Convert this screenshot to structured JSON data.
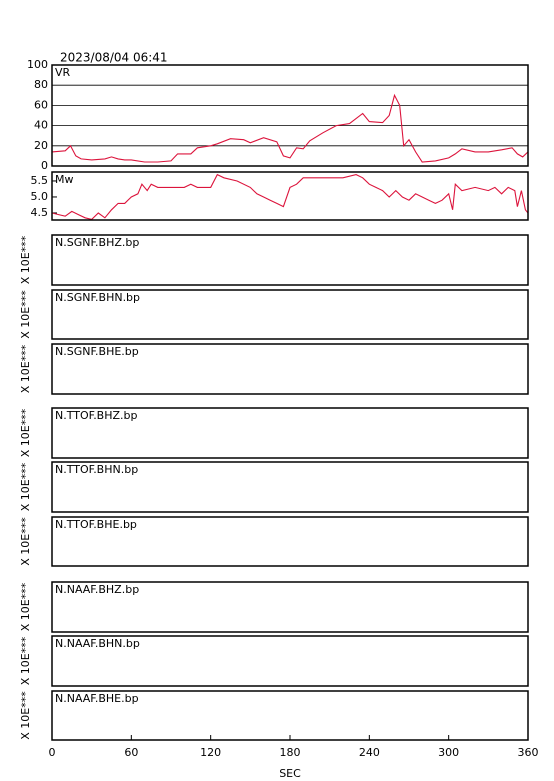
{
  "title": "2023/08/04 06:41",
  "chart_data": [
    {
      "type": "line",
      "label": "VR",
      "color": "#dc143c",
      "x": [
        0,
        10,
        14,
        18,
        22,
        30,
        40,
        45,
        50,
        55,
        60,
        70,
        80,
        90,
        95,
        105,
        110,
        120,
        125,
        135,
        145,
        150,
        160,
        170,
        175,
        180,
        185,
        190,
        195,
        205,
        215,
        225,
        235,
        240,
        250,
        255,
        259,
        263,
        266,
        270,
        275,
        280,
        290,
        300,
        305,
        310,
        320,
        330,
        340,
        348,
        352,
        356,
        360
      ],
      "values": [
        14,
        15,
        20,
        10,
        7,
        6,
        7,
        9,
        7,
        6,
        6,
        4,
        4,
        5,
        12,
        12,
        18,
        20,
        22,
        27,
        26,
        23,
        28,
        24,
        10,
        8,
        18,
        17,
        25,
        33,
        40,
        42,
        52,
        44,
        43,
        50,
        70,
        60,
        20,
        26,
        14,
        4,
        5,
        8,
        12,
        17,
        14,
        14,
        16,
        18,
        12,
        9,
        14
      ],
      "xlim": [
        0,
        360
      ],
      "ylim": [
        0,
        100
      ],
      "yticks": [
        0,
        20,
        40,
        60,
        80,
        100
      ],
      "grid": true
    },
    {
      "type": "line",
      "label": "Mw",
      "color": "#dc143c",
      "x": [
        0,
        5,
        10,
        15,
        20,
        25,
        30,
        35,
        40,
        45,
        50,
        55,
        60,
        65,
        68,
        72,
        75,
        80,
        90,
        100,
        105,
        110,
        120,
        125,
        130,
        140,
        150,
        155,
        160,
        165,
        170,
        175,
        180,
        185,
        190,
        200,
        210,
        220,
        230,
        235,
        240,
        245,
        250,
        255,
        260,
        265,
        270,
        275,
        280,
        285,
        290,
        295,
        300,
        303,
        305,
        310,
        320,
        330,
        335,
        340,
        345,
        350,
        352,
        355,
        358,
        360
      ],
      "values": [
        4.5,
        4.45,
        4.4,
        4.55,
        4.45,
        4.35,
        4.3,
        4.5,
        4.35,
        4.6,
        4.8,
        4.8,
        5.0,
        5.1,
        5.4,
        5.2,
        5.4,
        5.3,
        5.3,
        5.3,
        5.4,
        5.3,
        5.3,
        5.7,
        5.6,
        5.5,
        5.3,
        5.1,
        5.0,
        4.9,
        4.8,
        4.7,
        5.3,
        5.4,
        5.6,
        5.6,
        5.6,
        5.6,
        5.7,
        5.6,
        5.4,
        5.3,
        5.2,
        5.0,
        5.2,
        5.0,
        4.9,
        5.1,
        5.0,
        4.9,
        4.8,
        4.9,
        5.1,
        4.6,
        5.4,
        5.2,
        5.3,
        5.2,
        5.3,
        5.1,
        5.3,
        5.2,
        4.7,
        5.2,
        4.6,
        4.5
      ],
      "xlim": [
        0,
        360
      ],
      "ylim": [
        4.28,
        5.78
      ],
      "yticks": [
        4.5,
        {
          "value": 5,
          "label": "5.0"
        },
        5.5
      ],
      "grid": false
    },
    {
      "type": "waveform",
      "label": "N.SGNF.BHZ.bp",
      "ylabel": "X 10E***"
    },
    {
      "type": "waveform",
      "label": "N.SGNF.BHN.bp",
      "ylabel": "X 10E***"
    },
    {
      "type": "waveform",
      "label": "N.SGNF.BHE.bp",
      "ylabel": "X 10E***"
    },
    {
      "type": "waveform",
      "label": "N.TTOF.BHZ.bp",
      "ylabel": "X 10E***"
    },
    {
      "type": "waveform",
      "label": "N.TTOF.BHN.bp",
      "ylabel": "X 10E***"
    },
    {
      "type": "waveform",
      "label": "N.TTOF.BHE.bp",
      "ylabel": "X 10E***"
    },
    {
      "type": "waveform",
      "label": "N.NAAF.BHZ.bp",
      "ylabel": "X 10E***"
    },
    {
      "type": "waveform",
      "label": "N.NAAF.BHN.bp",
      "ylabel": "X 10E***"
    },
    {
      "type": "waveform",
      "label": "N.NAAF.BHE.bp",
      "ylabel": "X 10E***",
      "xlim": [
        0,
        360
      ],
      "xticks": [
        0,
        60,
        120,
        180,
        240,
        300,
        360
      ],
      "xlabel": "SEC"
    }
  ]
}
